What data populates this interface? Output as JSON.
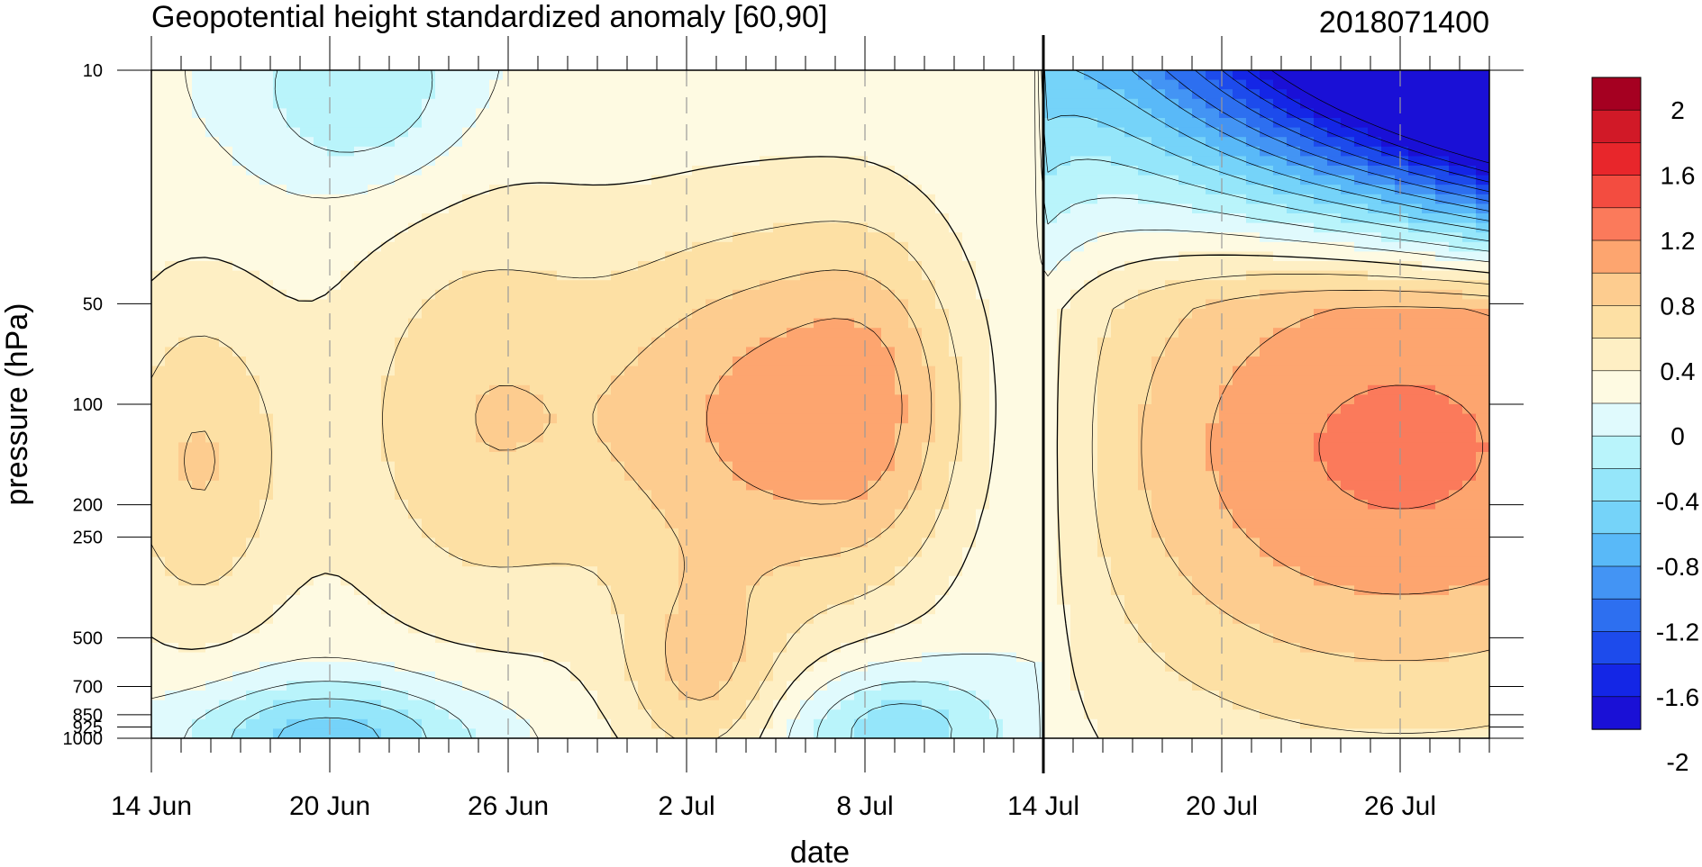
{
  "chart_data": {
    "type": "contour",
    "title": "Geopotential height standardized anomaly [60,90]",
    "right_title": "2018071400",
    "xlabel": "date",
    "ylabel": "pressure (hPa)",
    "x_tick_labels": [
      "14 Jun",
      "20 Jun",
      "26 Jun",
      "2 Jul",
      "8 Jul",
      "14 Jul",
      "20 Jul",
      "26 Jul"
    ],
    "x_tick_days": [
      0,
      6,
      12,
      18,
      24,
      30,
      36,
      42
    ],
    "x_range_days": [
      0,
      45
    ],
    "minor_tick_step_days": 1,
    "y_tick_labels": [
      "10",
      "50",
      "100",
      "200",
      "250",
      "500",
      "700",
      "850",
      "925",
      "1000"
    ],
    "y_tick_values": [
      10,
      50,
      100,
      200,
      250,
      500,
      700,
      850,
      925,
      1000
    ],
    "ylim": [
      10,
      1000
    ],
    "y_scale": "log",
    "y_inverted": true,
    "analysis_day": 30,
    "grid": "dashed vertical lines at labeled dates",
    "colorbar": {
      "labels": [
        "2",
        "1.6",
        "1.2",
        "0.8",
        "0.4",
        "0",
        "-0.4",
        "-0.8",
        "-1.2",
        "-1.6",
        "-2"
      ],
      "levels": [
        -2.2,
        -2.0,
        -1.8,
        -1.6,
        -1.4,
        -1.2,
        -1.0,
        -0.8,
        -0.6,
        -0.4,
        -0.2,
        0.0,
        0.2,
        0.4,
        0.6,
        0.8,
        1.0,
        1.2,
        1.4,
        1.6,
        1.8,
        2.0,
        2.2
      ],
      "colors_top_to_bottom": [
        "#a50021",
        "#d11927",
        "#e8262b",
        "#f34c40",
        "#fb7a5b",
        "#fda56f",
        "#fdcc8f",
        "#fde0a4",
        "#feefc4",
        "#fefae2",
        "#e0fafd",
        "#b9f4fb",
        "#95e6fa",
        "#75d3f9",
        "#59b9f8",
        "#4394f4",
        "#2d6ff0",
        "#1d4bec",
        "#1426e6",
        "#1a10d6"
      ]
    }
  }
}
